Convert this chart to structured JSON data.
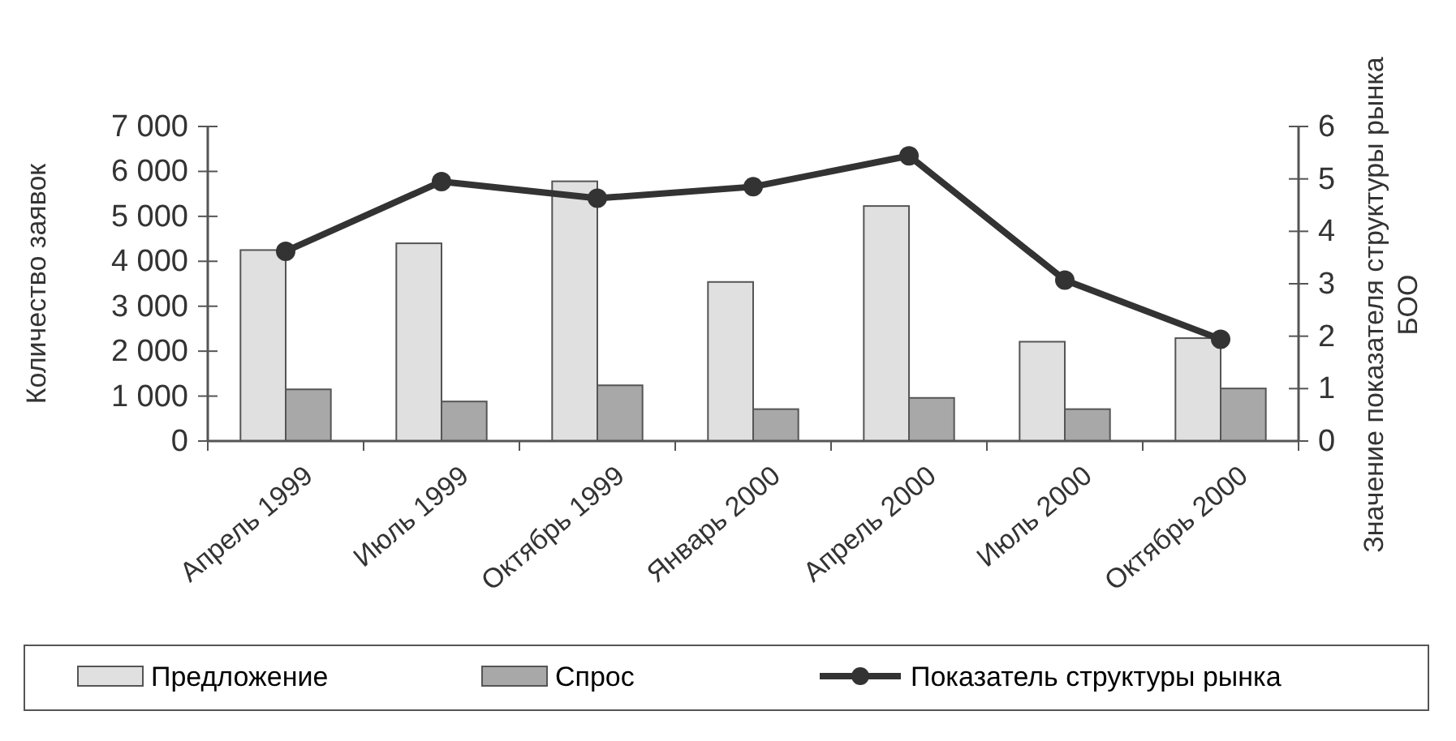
{
  "chart_data": {
    "type": "bar",
    "categories": [
      "Апрель 1999",
      "Июль 1999",
      "Октябрь 1999",
      "Январь 2000",
      "Апрель 2000",
      "Июль 2000",
      "Октябрь 2000"
    ],
    "series": [
      {
        "name": "Предложение",
        "color": "#e0e0e0",
        "values": [
          4250,
          4400,
          5780,
          3540,
          5230,
          2210,
          2290
        ]
      },
      {
        "name": "Спрос",
        "color": "#a8a8a8",
        "values": [
          1150,
          880,
          1240,
          710,
          960,
          710,
          1170
        ]
      },
      {
        "name": "Показатель структуры рынка",
        "type": "line",
        "axis": "y2",
        "color": "#333333",
        "values": [
          3.62,
          4.95,
          4.63,
          4.85,
          5.44,
          3.07,
          1.94
        ]
      }
    ],
    "ylabel": "Количество заявок",
    "y2label": "Значение показателя структуры рынка\nБОО",
    "ylim": [
      0,
      7000
    ],
    "yticks": [
      0,
      {
        "value": 1000,
        "label": "1 000"
      },
      {
        "value": 2000,
        "label": "2 000"
      },
      {
        "value": 3000,
        "label": "3 000"
      },
      {
        "value": 4000,
        "label": "4 000"
      },
      {
        "value": 5000,
        "label": "5 000"
      },
      {
        "value": 6000,
        "label": "6 000"
      },
      {
        "value": 7000,
        "label": "7 000"
      }
    ],
    "y2lim": [
      0,
      6
    ],
    "y2ticks": [
      0,
      1,
      2,
      3,
      4,
      5,
      6
    ],
    "legend": "bottom",
    "marker": "circle",
    "line_style": "solid",
    "grid": false
  }
}
